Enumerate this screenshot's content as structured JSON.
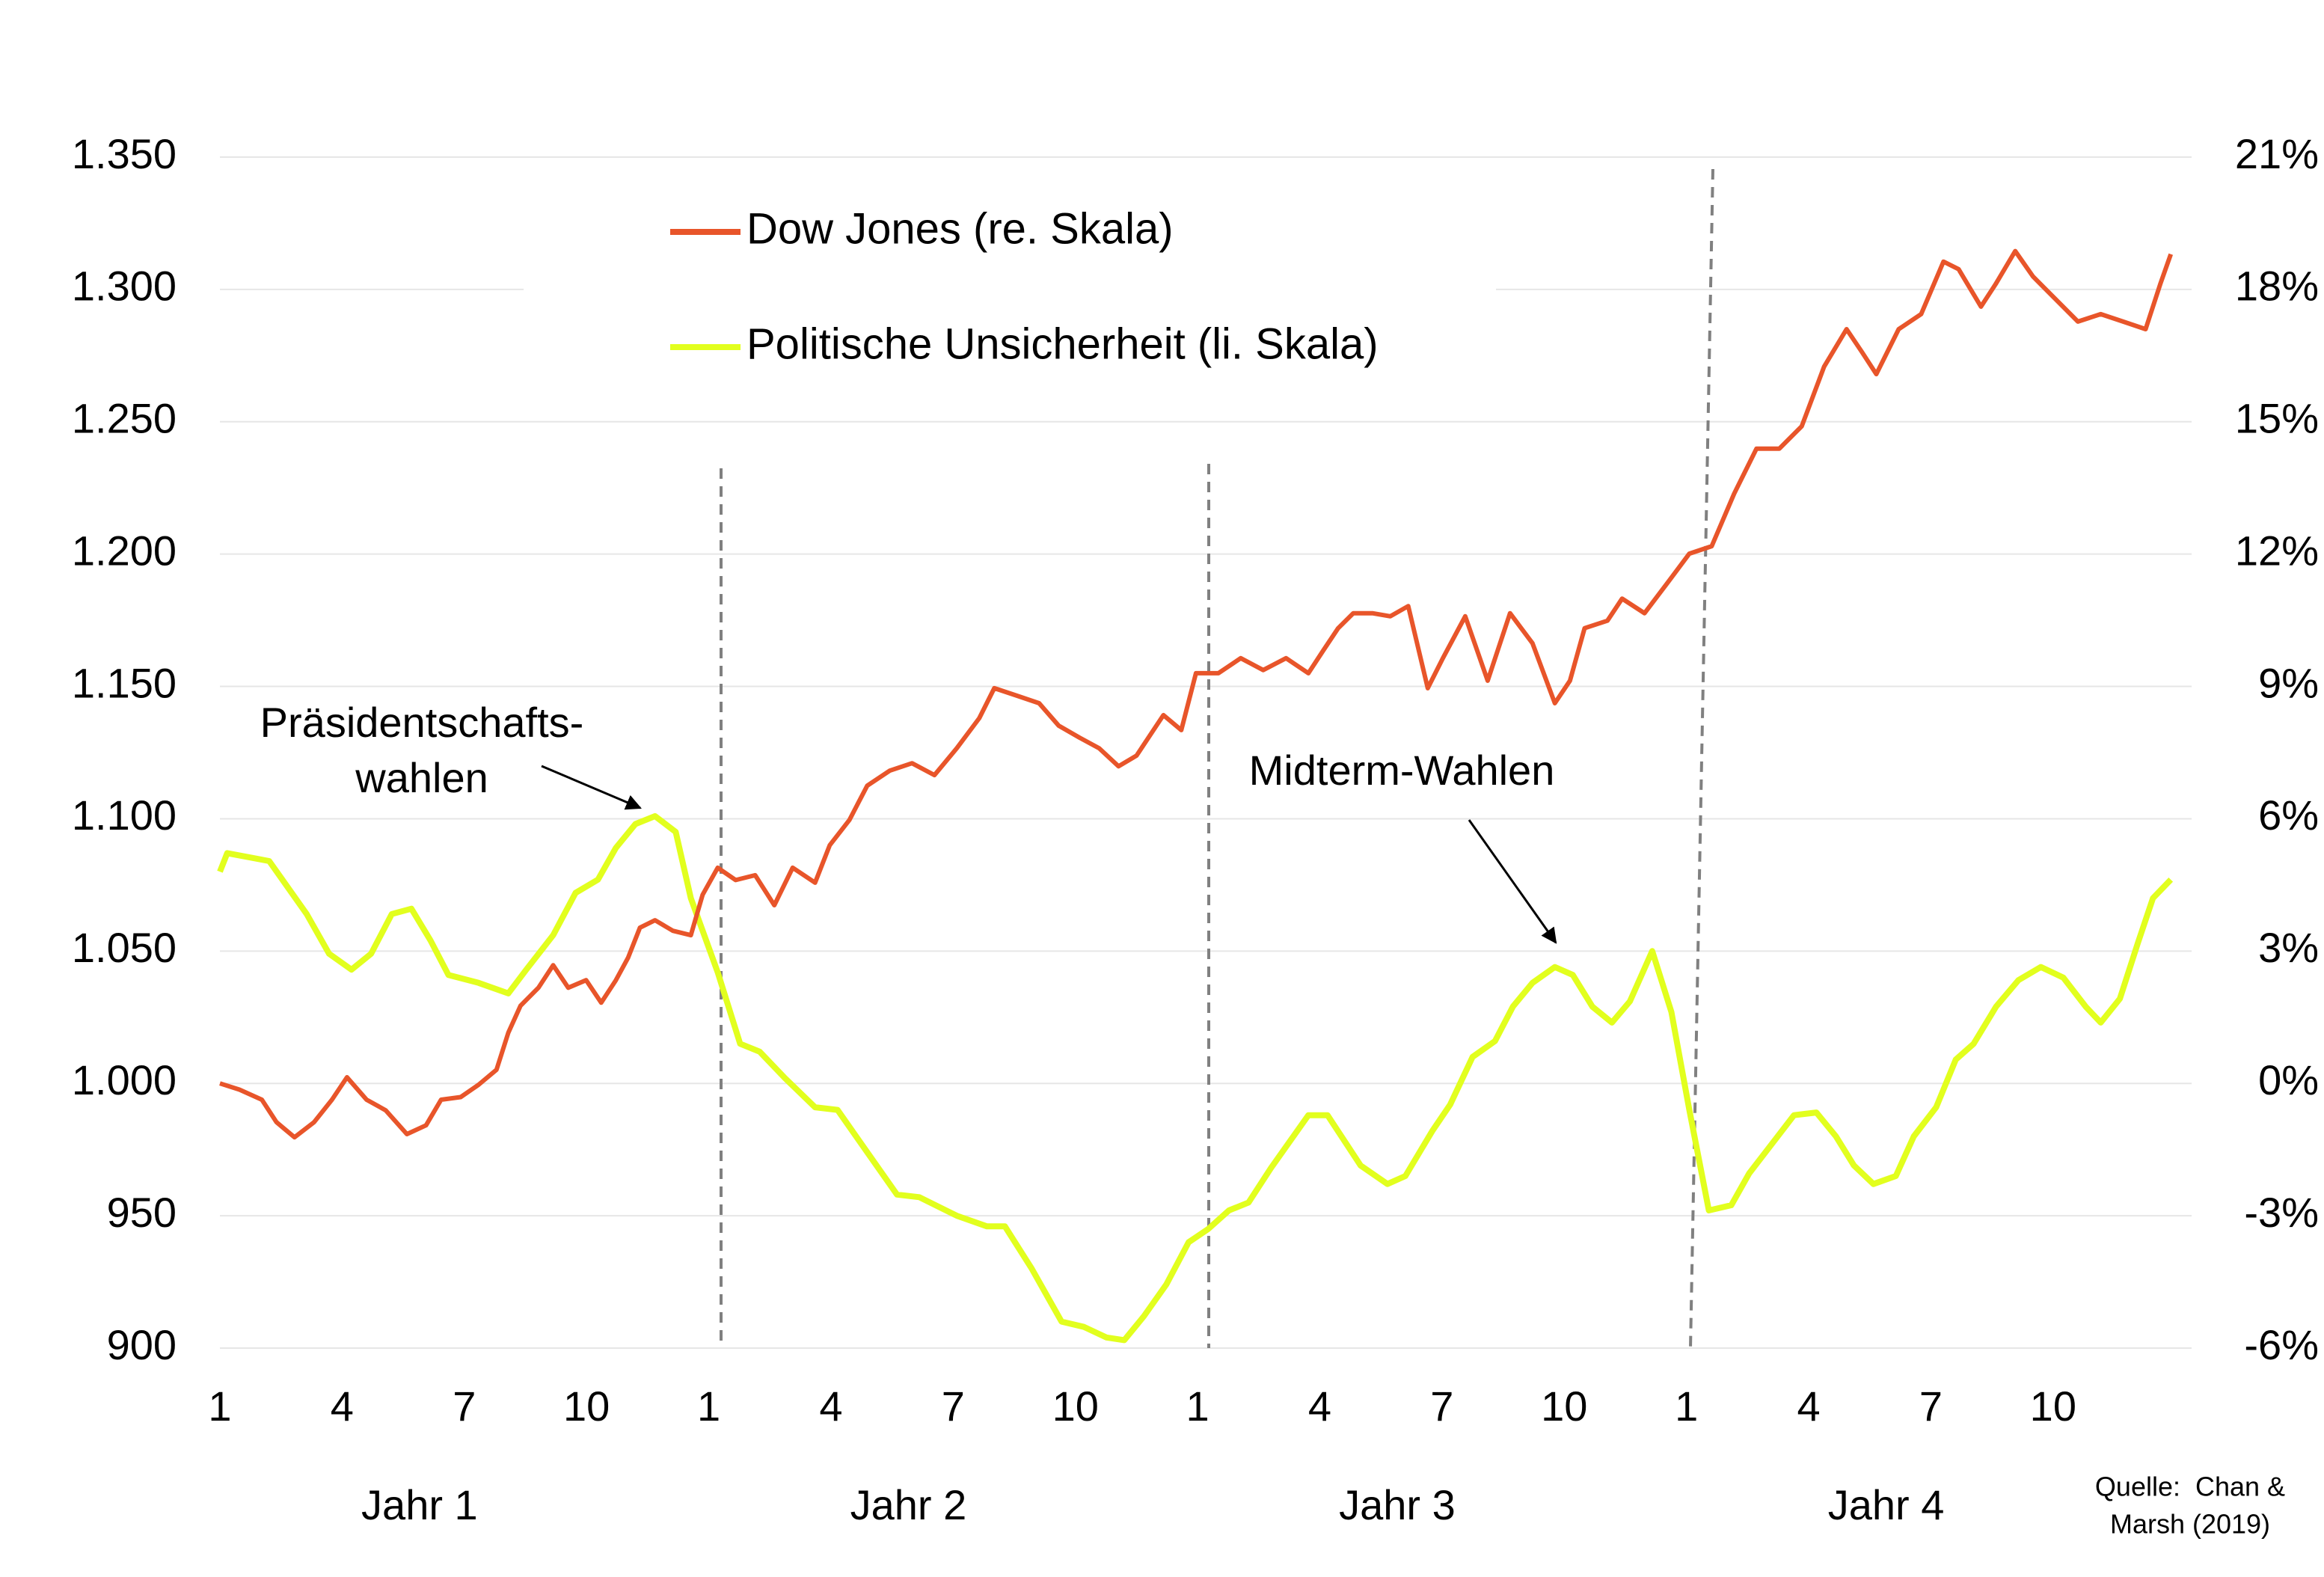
{
  "chart_data": {
    "type": "line",
    "ylim": [
      900,
      1350
    ],
    "yticks": [
      {
        "value": 1350,
        "label": "1.350"
      },
      {
        "value": 1300,
        "label": "1.300"
      },
      {
        "value": 1250,
        "label": "1.250"
      },
      {
        "value": 1200,
        "label": "1.200"
      },
      {
        "value": 1150,
        "label": "1.150"
      },
      {
        "value": 1100,
        "label": "1.100"
      },
      {
        "value": 1050,
        "label": "1.050"
      },
      {
        "value": 1000,
        "label": "1.000"
      },
      950,
      900
    ],
    "y2lim": [
      -6,
      21
    ],
    "y2ticks": [
      {
        "value": 21,
        "label": "21%"
      },
      {
        "value": 18,
        "label": "18%"
      },
      {
        "value": 15,
        "label": "15%"
      },
      {
        "value": 12,
        "label": "12%"
      },
      {
        "value": 9,
        "label": "9%"
      },
      {
        "value": 6,
        "label": "6%"
      },
      {
        "value": 3,
        "label": "3%"
      },
      {
        "value": 0,
        "label": "0%"
      },
      {
        "value": -3,
        "label": "-3%"
      },
      {
        "value": -6,
        "label": "-6%"
      }
    ],
    "xlim": [
      1,
      49.4
    ],
    "xticks": [
      1,
      4,
      7,
      10,
      {
        "value": 13,
        "label": "1"
      },
      {
        "value": 16,
        "label": "4"
      },
      {
        "value": 19,
        "label": "7"
      },
      {
        "value": 22,
        "label": "10"
      },
      {
        "value": 25,
        "label": "1"
      },
      {
        "value": 28,
        "label": "4"
      },
      {
        "value": 31,
        "label": "7"
      },
      {
        "value": 34,
        "label": "10"
      },
      {
        "value": 37,
        "label": "1"
      },
      {
        "value": 40,
        "label": "4"
      },
      {
        "value": 43,
        "label": "7"
      },
      {
        "value": 46,
        "label": "10"
      }
    ],
    "x_group_labels": [
      "Jahr 1",
      "Jahr 2",
      "Jahr 3",
      "Jahr 4"
    ],
    "grid": true,
    "legend": "top",
    "annotations": [
      "Präsidentschafts-",
      "wahlen",
      "Midterm-Wahlen"
    ],
    "source": [
      "Quelle:  Chan &",
      "Marsh (2019)"
    ],
    "series": [
      {
        "name": "Dow Jones (re. Skala)",
        "color": "#e8552a",
        "axis": "y2",
        "x": [
          1.0,
          1.48,
          2.03,
          2.39,
          2.83,
          3.31,
          3.75,
          4.12,
          4.6,
          5.07,
          5.59,
          6.06,
          6.43,
          6.91,
          7.35,
          7.79,
          8.08,
          8.38,
          8.82,
          9.18,
          9.55,
          9.99,
          10.36,
          10.72,
          11.02,
          11.31,
          11.68,
          12.12,
          12.56,
          12.85,
          13.22,
          13.66,
          14.14,
          14.61,
          15.06,
          15.61,
          15.97,
          16.45,
          16.89,
          17.44,
          17.99,
          18.54,
          19.09,
          19.64,
          20.01,
          20.56,
          21.11,
          21.59,
          22.1,
          22.58,
          23.06,
          23.5,
          24.16,
          24.6,
          24.96,
          25.51,
          26.06,
          26.61,
          27.17,
          27.72,
          28.08,
          28.45,
          28.82,
          29.29,
          29.73,
          30.17,
          30.65,
          31.02,
          31.57,
          32.12,
          32.67,
          33.22,
          33.77,
          34.14,
          34.5,
          35.06,
          35.42,
          35.97,
          36.52,
          37.07,
          37.62,
          38.17,
          38.72,
          39.28,
          39.83,
          40.38,
          40.93,
          41.3,
          41.66,
          42.21,
          42.76,
          43.31,
          43.68,
          44.23,
          44.59,
          45.07,
          45.51,
          46.06,
          46.61,
          47.17,
          47.72,
          48.27,
          48.63,
          48.89
        ],
        "values": [
          0.0,
          -0.14,
          -0.37,
          -0.88,
          -1.22,
          -0.88,
          -0.37,
          0.14,
          -0.37,
          -0.61,
          -1.15,
          -0.95,
          -0.37,
          -0.31,
          -0.03,
          0.31,
          1.15,
          1.76,
          2.17,
          2.68,
          2.17,
          2.34,
          1.83,
          2.34,
          2.85,
          3.53,
          3.7,
          3.46,
          3.36,
          4.28,
          4.89,
          4.61,
          4.72,
          4.04,
          4.89,
          4.55,
          5.4,
          5.97,
          6.75,
          7.09,
          7.26,
          6.99,
          7.6,
          8.28,
          8.96,
          8.79,
          8.62,
          8.11,
          7.84,
          7.6,
          7.19,
          7.43,
          8.35,
          8.01,
          9.3,
          9.3,
          9.64,
          9.37,
          9.64,
          9.3,
          9.81,
          10.32,
          10.66,
          10.66,
          10.59,
          10.82,
          8.96,
          9.64,
          10.59,
          9.13,
          10.66,
          9.98,
          8.62,
          9.13,
          10.32,
          10.49,
          10.99,
          10.66,
          11.33,
          12.01,
          12.18,
          13.37,
          14.39,
          14.39,
          14.9,
          16.25,
          17.1,
          16.59,
          16.08,
          17.1,
          17.44,
          18.63,
          18.46,
          17.61,
          18.12,
          18.87,
          18.29,
          17.78,
          17.27,
          17.44,
          17.27,
          17.1,
          18.12,
          18.8
        ]
      },
      {
        "name": "Politische Unsicherheit (li. Skala)",
        "color": "#e2ff1e",
        "axis": "y",
        "x": [
          1.0,
          1.18,
          2.21,
          3.13,
          3.68,
          4.23,
          4.71,
          5.22,
          5.7,
          6.17,
          6.61,
          7.35,
          8.08,
          8.52,
          9.18,
          9.73,
          10.28,
          10.72,
          11.2,
          11.68,
          12.19,
          12.56,
          13.22,
          13.77,
          14.25,
          14.87,
          15.61,
          16.16,
          16.89,
          17.62,
          18.17,
          19.09,
          19.83,
          20.27,
          20.93,
          21.66,
          22.21,
          22.76,
          23.2,
          23.68,
          24.23,
          24.78,
          25.26,
          25.77,
          26.25,
          26.8,
          27.72,
          28.19,
          29.0,
          29.66,
          30.1,
          30.76,
          31.2,
          31.75,
          32.3,
          32.74,
          33.22,
          33.77,
          34.21,
          34.69,
          35.17,
          35.61,
          36.16,
          36.63,
          37.07,
          37.55,
          38.1,
          38.54,
          39.09,
          39.64,
          40.19,
          40.67,
          41.11,
          41.59,
          42.14,
          42.58,
          43.13,
          43.61,
          44.05,
          44.6,
          45.15,
          45.7,
          46.25,
          46.8,
          47.17,
          47.64,
          48.08,
          48.45,
          48.89
        ],
        "values": [
          1080,
          1087,
          1084,
          1064,
          1049,
          1043,
          1049,
          1064,
          1066,
          1054,
          1041,
          1038,
          1034,
          1043,
          1056,
          1072,
          1077,
          1089,
          1098,
          1101,
          1095,
          1070,
          1042,
          1015,
          1012,
          1002,
          991,
          990,
          974,
          958,
          957,
          950,
          946,
          946,
          930,
          910,
          908,
          904,
          903,
          912,
          924,
          940,
          945,
          952,
          955,
          968,
          988,
          988,
          969,
          962,
          965,
          982,
          992,
          1010,
          1016,
          1029,
          1038,
          1044,
          1041,
          1029,
          1023,
          1031,
          1050,
          1027,
          990,
          952,
          954,
          966,
          977,
          988,
          989,
          980,
          969,
          962,
          965,
          980,
          991,
          1009,
          1015,
          1029,
          1039,
          1044,
          1040,
          1029,
          1023,
          1032,
          1053,
          1070,
          1077
        ]
      }
    ]
  }
}
